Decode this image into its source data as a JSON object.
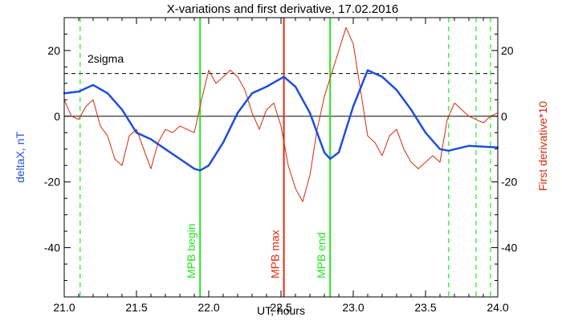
{
  "chart_data": {
    "type": "line",
    "title": "X-variations and first derivative, 17.02.2016",
    "xlabel": "UT, hours",
    "ylabel_left": "deltaX, nT",
    "ylabel_right": "First derivative*10",
    "xlim": [
      21.0,
      24.0
    ],
    "ylim": [
      -55,
      30
    ],
    "xticks": [
      "21.0",
      "21.5",
      "22.0",
      "22.5",
      "23.0",
      "23.5",
      "24.0"
    ],
    "yticks": [
      "-40",
      "-20",
      "0",
      "20"
    ],
    "colors": {
      "series_x": "#1f4fd8",
      "series_deriv": "#d42a0a",
      "mpb_green": "#22e622",
      "mpb_red": "#e12b12",
      "threshold": "#000000"
    },
    "threshold": {
      "label": "2sigma",
      "value": 13
    },
    "zero_line": 0,
    "markers": [
      {
        "label": "MPB begin",
        "x": 21.94,
        "color": "#22e622"
      },
      {
        "label": "MPB max",
        "x": 22.52,
        "color": "#e12b12"
      },
      {
        "label": "MPB end",
        "x": 22.84,
        "color": "#22e622"
      }
    ],
    "dashed_lines": [
      21.11,
      23.66,
      23.85,
      23.95
    ],
    "series": [
      {
        "name": "deltaX",
        "color": "#1f4fd8",
        "x": [
          21.0,
          21.1,
          21.2,
          21.3,
          21.4,
          21.5,
          21.6,
          21.7,
          21.8,
          21.9,
          21.94,
          22.0,
          22.1,
          22.2,
          22.3,
          22.4,
          22.52,
          22.6,
          22.7,
          22.8,
          22.84,
          22.9,
          23.0,
          23.1,
          23.2,
          23.3,
          23.4,
          23.5,
          23.6,
          23.66,
          23.8,
          24.0
        ],
        "y": [
          7,
          7.5,
          9.5,
          7,
          2,
          -5,
          -7,
          -10,
          -13,
          -16,
          -16.5,
          -15,
          -8,
          1,
          7,
          9,
          12,
          9,
          1,
          -11,
          -13,
          -11,
          3,
          14,
          12,
          8,
          2,
          -5,
          -10,
          -10.5,
          -9,
          -9.5
        ]
      },
      {
        "name": "derivative",
        "color": "#d42a0a",
        "x": [
          21.0,
          21.05,
          21.1,
          21.15,
          21.2,
          21.25,
          21.3,
          21.35,
          21.4,
          21.45,
          21.5,
          21.55,
          21.6,
          21.65,
          21.7,
          21.75,
          21.8,
          21.85,
          21.9,
          21.95,
          22.0,
          22.05,
          22.1,
          22.15,
          22.2,
          22.25,
          22.3,
          22.35,
          22.4,
          22.45,
          22.5,
          22.55,
          22.6,
          22.65,
          22.7,
          22.75,
          22.8,
          22.85,
          22.9,
          22.95,
          23.0,
          23.05,
          23.1,
          23.15,
          23.2,
          23.25,
          23.3,
          23.35,
          23.4,
          23.45,
          23.5,
          23.55,
          23.6,
          23.65,
          23.7,
          23.75,
          23.8,
          23.85,
          23.9,
          23.95,
          24.0
        ],
        "y": [
          5,
          0,
          -1,
          3,
          5,
          -3,
          -6,
          -13,
          -15,
          -6,
          -4,
          -10,
          -16,
          -8,
          -4,
          -5,
          -3,
          -4,
          -5,
          5,
          14,
          10,
          12,
          14,
          12,
          8,
          1,
          -4,
          2,
          4,
          -3,
          -15,
          -22,
          -26,
          -18,
          -4,
          6,
          13,
          20,
          27,
          22,
          8,
          -6,
          -8,
          -12,
          -6,
          -4,
          -10,
          -14,
          -16,
          -14,
          -12,
          -14,
          -1,
          4,
          2,
          0,
          -1,
          -2,
          0,
          1
        ]
      }
    ]
  }
}
